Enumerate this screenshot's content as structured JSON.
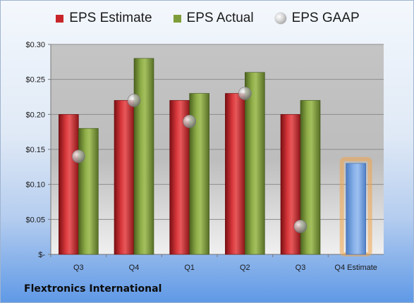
{
  "colors": {
    "estimate": "#c8252a",
    "actual": "#7e9d3a",
    "gaap": "#bdbdbd",
    "forecast": "#6e9fde",
    "forecast_glow": "#f0a44a"
  },
  "legend": [
    {
      "label": "EPS Estimate",
      "icon": "red-square"
    },
    {
      "label": "EPS Actual",
      "icon": "green-square"
    },
    {
      "label": "EPS GAAP",
      "icon": "grey-sphere"
    }
  ],
  "company": "Flextronics International",
  "chart_data": {
    "type": "bar",
    "categories": [
      "Q3",
      "Q4",
      "Q1",
      "Q2",
      "Q3",
      "Q4 Estimate"
    ],
    "series": [
      {
        "name": "EPS Estimate",
        "values": [
          0.2,
          0.22,
          0.22,
          0.23,
          0.2,
          null
        ]
      },
      {
        "name": "EPS Actual",
        "values": [
          0.18,
          0.28,
          0.23,
          0.26,
          0.22,
          null
        ]
      },
      {
        "name": "EPS GAAP",
        "values": [
          0.14,
          0.22,
          0.19,
          0.23,
          0.04,
          null
        ]
      }
    ],
    "forecast": {
      "category": "Q4 Estimate",
      "value": 0.13
    },
    "ylim": [
      0,
      0.3
    ],
    "yticks": [
      0,
      0.05,
      0.1,
      0.15,
      0.2,
      0.25,
      0.3
    ],
    "ytick_labels": [
      "$-",
      "$0.05",
      "$0.10",
      "$0.15",
      "$0.20",
      "$0.25",
      "$0.30"
    ],
    "grid": true,
    "legend_position": "top"
  }
}
